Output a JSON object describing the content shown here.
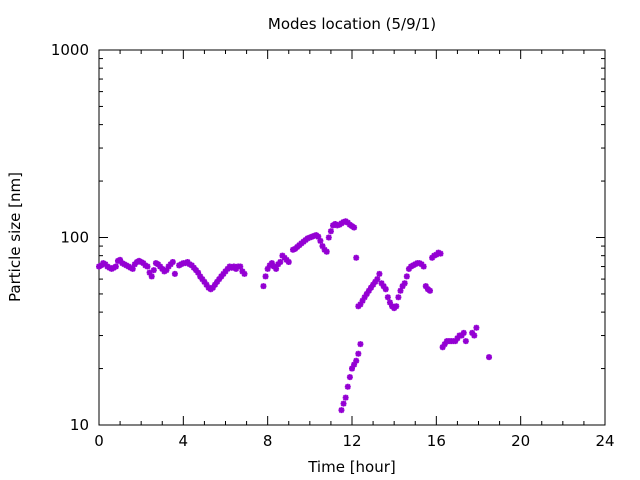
{
  "chart_data": {
    "type": "scatter",
    "title": "Modes location (5/9/1)",
    "xlabel": "Time [hour]",
    "ylabel": "Particle size [nm]",
    "xlim": [
      0,
      24
    ],
    "ylim": [
      10,
      1000
    ],
    "yscale": "log",
    "xticks": [
      0,
      4,
      8,
      12,
      16,
      20,
      24
    ],
    "yticks": [
      10,
      100,
      1000
    ],
    "grid": false,
    "marker": "asterisk",
    "color": "#9400d3",
    "series": [
      {
        "points": [
          [
            0.0,
            70
          ],
          [
            0.1,
            71
          ],
          [
            0.2,
            73
          ],
          [
            0.3,
            72
          ],
          [
            0.4,
            70
          ],
          [
            0.5,
            69
          ],
          [
            0.6,
            68
          ],
          [
            0.7,
            69
          ],
          [
            0.8,
            70
          ],
          [
            0.9,
            75
          ],
          [
            1.0,
            76
          ],
          [
            1.1,
            73
          ],
          [
            1.2,
            72
          ],
          [
            1.3,
            71
          ],
          [
            1.4,
            70
          ],
          [
            1.5,
            69
          ],
          [
            1.6,
            68
          ],
          [
            1.7,
            72
          ],
          [
            1.8,
            74
          ],
          [
            1.9,
            75
          ],
          [
            2.0,
            74
          ],
          [
            2.1,
            73
          ],
          [
            2.2,
            71
          ],
          [
            2.3,
            70
          ],
          [
            2.4,
            65
          ],
          [
            2.5,
            62
          ],
          [
            2.6,
            67
          ],
          [
            2.7,
            73
          ],
          [
            2.8,
            72
          ],
          [
            2.9,
            70
          ],
          [
            3.0,
            68
          ],
          [
            3.1,
            66
          ],
          [
            3.2,
            67
          ],
          [
            3.3,
            70
          ],
          [
            3.4,
            72
          ],
          [
            3.5,
            74
          ],
          [
            3.6,
            64
          ],
          [
            3.8,
            71
          ],
          [
            3.9,
            72
          ],
          [
            4.0,
            73
          ],
          [
            4.1,
            73
          ],
          [
            4.2,
            74
          ],
          [
            4.3,
            72
          ],
          [
            4.4,
            71
          ],
          [
            4.5,
            69
          ],
          [
            4.6,
            67
          ],
          [
            4.7,
            65
          ],
          [
            4.8,
            62
          ],
          [
            4.9,
            60
          ],
          [
            5.0,
            58
          ],
          [
            5.1,
            56
          ],
          [
            5.2,
            54
          ],
          [
            5.3,
            53
          ],
          [
            5.4,
            54
          ],
          [
            5.5,
            56
          ],
          [
            5.6,
            58
          ],
          [
            5.7,
            60
          ],
          [
            5.8,
            62
          ],
          [
            5.9,
            64
          ],
          [
            6.0,
            66
          ],
          [
            6.1,
            68
          ],
          [
            6.2,
            70
          ],
          [
            6.3,
            69
          ],
          [
            6.4,
            70
          ],
          [
            6.5,
            68
          ],
          [
            6.6,
            70
          ],
          [
            6.7,
            70
          ],
          [
            6.8,
            66
          ],
          [
            6.9,
            64
          ],
          [
            7.8,
            55
          ],
          [
            7.9,
            62
          ],
          [
            8.0,
            68
          ],
          [
            8.1,
            71
          ],
          [
            8.2,
            73
          ],
          [
            8.3,
            70
          ],
          [
            8.4,
            68
          ],
          [
            8.5,
            72
          ],
          [
            8.6,
            74
          ],
          [
            8.7,
            80
          ],
          [
            8.8,
            78
          ],
          [
            8.9,
            76
          ],
          [
            9.0,
            74
          ],
          [
            9.2,
            86
          ],
          [
            9.3,
            87
          ],
          [
            9.4,
            89
          ],
          [
            9.5,
            91
          ],
          [
            9.6,
            93
          ],
          [
            9.7,
            95
          ],
          [
            9.8,
            97
          ],
          [
            9.9,
            99
          ],
          [
            10.0,
            100
          ],
          [
            10.1,
            101
          ],
          [
            10.2,
            102
          ],
          [
            10.3,
            103
          ],
          [
            10.4,
            101
          ],
          [
            10.5,
            96
          ],
          [
            10.6,
            90
          ],
          [
            10.7,
            86
          ],
          [
            10.8,
            84
          ],
          [
            10.9,
            100
          ],
          [
            11.0,
            108
          ],
          [
            11.1,
            116
          ],
          [
            11.2,
            118
          ],
          [
            11.3,
            116
          ],
          [
            11.4,
            117
          ],
          [
            11.5,
            119
          ],
          [
            11.6,
            121
          ],
          [
            11.7,
            122
          ],
          [
            11.8,
            120
          ],
          [
            11.9,
            117
          ],
          [
            12.0,
            115
          ],
          [
            12.1,
            113
          ],
          [
            12.2,
            78
          ],
          [
            12.3,
            43
          ],
          [
            12.4,
            44
          ],
          [
            12.5,
            46
          ],
          [
            12.6,
            48
          ],
          [
            12.7,
            50
          ],
          [
            12.8,
            52
          ],
          [
            12.9,
            54
          ],
          [
            13.0,
            56
          ],
          [
            13.1,
            58
          ],
          [
            13.2,
            60
          ],
          [
            13.3,
            64
          ],
          [
            13.4,
            57
          ],
          [
            13.5,
            55
          ],
          [
            13.6,
            53
          ],
          [
            13.7,
            48
          ],
          [
            13.8,
            45
          ],
          [
            13.9,
            43
          ],
          [
            14.0,
            42
          ],
          [
            14.1,
            43
          ],
          [
            14.2,
            48
          ],
          [
            14.3,
            52
          ],
          [
            14.4,
            55
          ],
          [
            14.5,
            57
          ],
          [
            14.6,
            62
          ],
          [
            14.7,
            68
          ],
          [
            14.8,
            70
          ],
          [
            14.9,
            71
          ],
          [
            15.0,
            72
          ],
          [
            15.1,
            73
          ],
          [
            15.2,
            73
          ],
          [
            15.3,
            72
          ],
          [
            15.4,
            70
          ],
          [
            15.5,
            55
          ],
          [
            15.6,
            53
          ],
          [
            15.7,
            52
          ],
          [
            15.8,
            78
          ],
          [
            15.9,
            80
          ],
          [
            16.0,
            81
          ],
          [
            16.1,
            83
          ],
          [
            16.2,
            82
          ],
          [
            11.5,
            12
          ],
          [
            11.6,
            13
          ],
          [
            11.7,
            14
          ],
          [
            11.8,
            16
          ],
          [
            11.9,
            18
          ],
          [
            12.0,
            20
          ],
          [
            12.1,
            21
          ],
          [
            12.2,
            22
          ],
          [
            12.3,
            24
          ],
          [
            12.4,
            27
          ],
          [
            16.3,
            26
          ],
          [
            16.4,
            27
          ],
          [
            16.5,
            28
          ],
          [
            16.6,
            28
          ],
          [
            16.7,
            28
          ],
          [
            16.8,
            28
          ],
          [
            16.9,
            28
          ],
          [
            17.0,
            29
          ],
          [
            17.1,
            30
          ],
          [
            17.2,
            30
          ],
          [
            17.3,
            31
          ],
          [
            17.4,
            28
          ],
          [
            17.7,
            31
          ],
          [
            17.8,
            30
          ],
          [
            17.9,
            33
          ],
          [
            18.5,
            23
          ]
        ]
      }
    ]
  }
}
